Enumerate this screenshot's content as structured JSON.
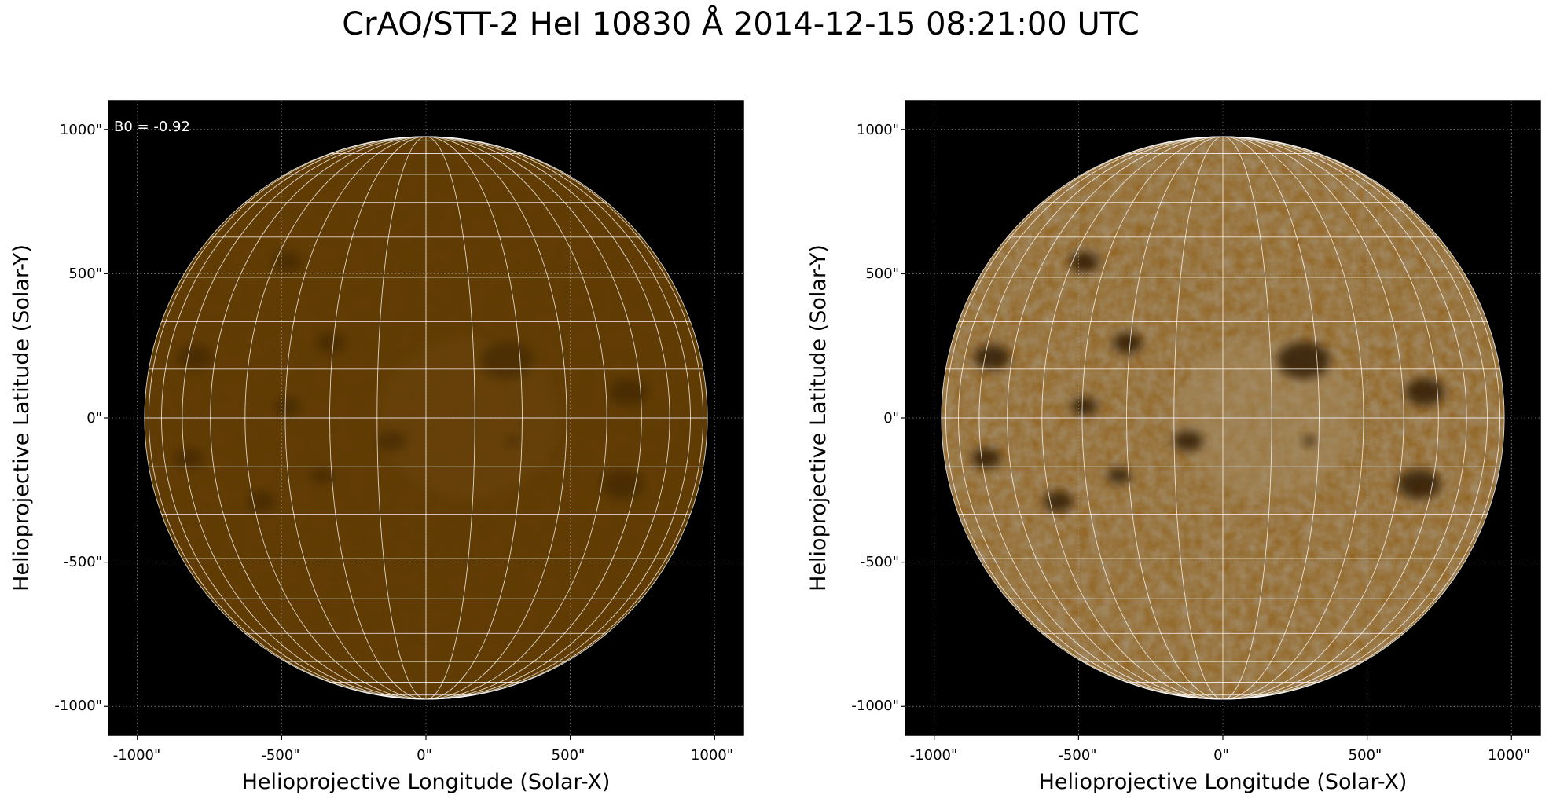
{
  "figure": {
    "title": "CrAO/STT-2 HeI 10830 Å 2014-12-15 08:21:00 UTC",
    "background_color": "#000000",
    "disk_colors": {
      "left_base": "#c47f10",
      "left_light": "#e8a838",
      "right_base": "#d99b3a",
      "right_light": "#fde6b6",
      "spot": "#1a0d00"
    }
  },
  "panels": [
    {
      "id": "left",
      "annotation": "B0 = -0.92",
      "xlabel": "Helioprojective Longitude (Solar-X)",
      "ylabel": "Helioprojective Latitude (Solar-Y)",
      "xticks": [
        "-1000\"",
        "-500\"",
        "0\"",
        "500\"",
        "1000\""
      ],
      "yticks": [
        "1000\"",
        "500\"",
        "0\"",
        "-500\"",
        "-1000\""
      ],
      "xlim": [
        -1100,
        1100
      ],
      "ylim": [
        -1100,
        1100
      ],
      "solar_radius_arcsec": 975,
      "style": "normal contrast"
    },
    {
      "id": "right",
      "annotation": "",
      "xlabel": "Helioprojective Longitude (Solar-X)",
      "ylabel": "Helioprojective Latitude (Solar-Y)",
      "xticks": [
        "-1000\"",
        "-500\"",
        "0\"",
        "500\"",
        "1000\""
      ],
      "yticks": [
        "1000\"",
        "500\"",
        "0\"",
        "-500\"",
        "-1000\""
      ],
      "xlim": [
        -1100,
        1100
      ],
      "ylim": [
        -1100,
        1100
      ],
      "solar_radius_arcsec": 975,
      "style": "enhanced contrast"
    }
  ],
  "dark_features": [
    {
      "x": -480,
      "y": 540,
      "r": 45
    },
    {
      "x": -330,
      "y": 260,
      "r": 45
    },
    {
      "x": -800,
      "y": 210,
      "r": 55
    },
    {
      "x": -120,
      "y": -80,
      "r": 45
    },
    {
      "x": -570,
      "y": -290,
      "r": 45
    },
    {
      "x": -360,
      "y": -200,
      "r": 35
    },
    {
      "x": -820,
      "y": -140,
      "r": 45
    },
    {
      "x": 280,
      "y": 200,
      "r": 80
    },
    {
      "x": 700,
      "y": 90,
      "r": 60
    },
    {
      "x": 680,
      "y": -230,
      "r": 65
    },
    {
      "x": -480,
      "y": 40,
      "r": 40
    },
    {
      "x": 300,
      "y": -80,
      "r": 20
    }
  ]
}
